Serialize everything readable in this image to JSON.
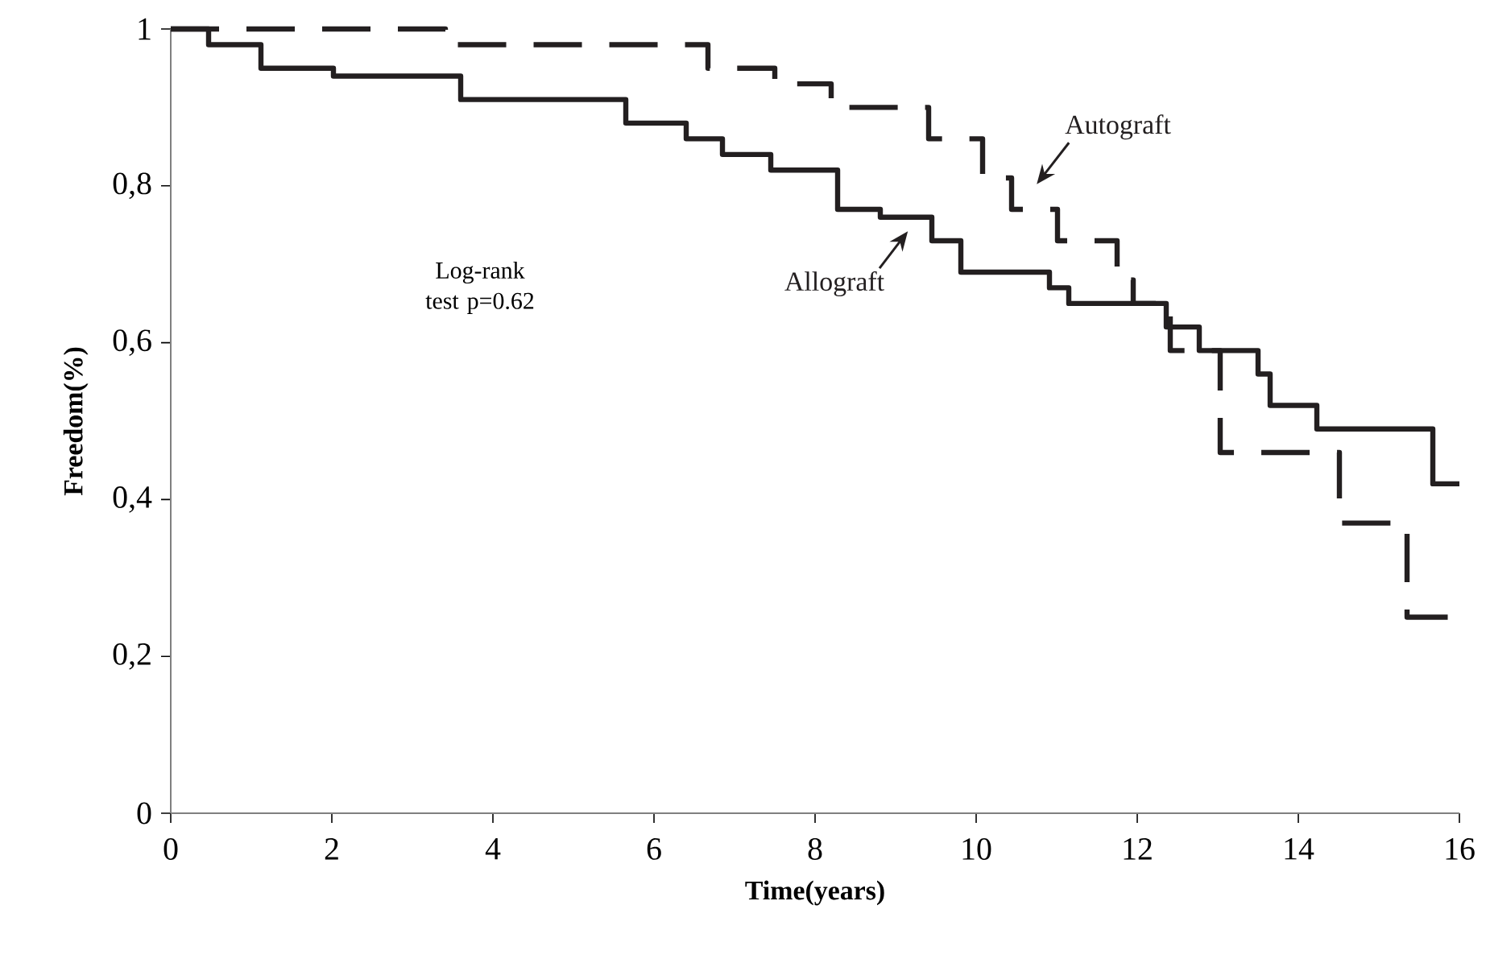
{
  "chart_data": {
    "type": "step",
    "xlabel": "Time(years)",
    "ylabel": "Freedom(%)",
    "xlim": [
      0,
      16
    ],
    "ylim": [
      0,
      1
    ],
    "xticks": [
      0,
      2,
      4,
      6,
      8,
      10,
      12,
      14,
      16
    ],
    "yticks": [
      0,
      {
        "value": 0.2,
        "label": "0,2"
      },
      {
        "value": 0.4,
        "label": "0,4"
      },
      {
        "value": 0.6,
        "label": "0,6"
      },
      {
        "value": 0.8,
        "label": "0,8"
      },
      1
    ],
    "annotations": [
      "Log-rank test p=0.62"
    ],
    "series": [
      {
        "name": "Allograft",
        "color": "#231f20",
        "line_style": "solid",
        "x": [
          0,
          0.47,
          1.12,
          2.02,
          3.6,
          5.65,
          6.4,
          6.85,
          7.45,
          8.28,
          8.81,
          9.45,
          9.81,
          10.91,
          11.15,
          12.36,
          12.77,
          13.5,
          13.65,
          14.23,
          15.67,
          16
        ],
        "values": [
          1,
          0.98,
          0.95,
          0.94,
          0.91,
          0.88,
          0.86,
          0.84,
          0.82,
          0.77,
          0.76,
          0.73,
          0.69,
          0.67,
          0.65,
          0.62,
          0.59,
          0.56,
          0.52,
          0.49,
          0.42,
          0.42
        ]
      },
      {
        "name": "Autograft",
        "color": "#231f20",
        "line_style": "dashed",
        "x": [
          0,
          3.41,
          6.67,
          7.5,
          8.2,
          9.41,
          10.08,
          10.44,
          11.01,
          11.75,
          11.95,
          12.41,
          13.03,
          14.51,
          15.35,
          15.88
        ],
        "values": [
          1,
          0.98,
          0.95,
          0.93,
          0.9,
          0.86,
          0.81,
          0.77,
          0.73,
          0.68,
          0.65,
          0.59,
          0.46,
          0.37,
          0.25,
          0.25
        ]
      }
    ]
  }
}
